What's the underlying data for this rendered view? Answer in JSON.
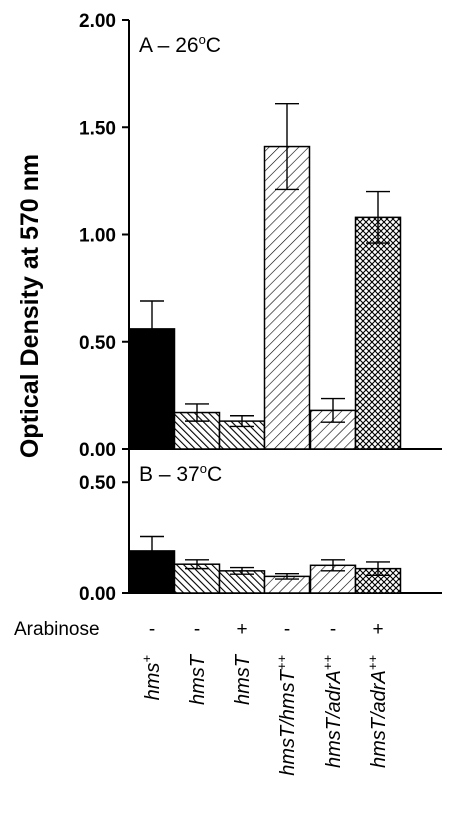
{
  "chart_data": {
    "type": "bar",
    "ylabel": "Optical Density at 570 nm",
    "categories": [
      {
        "base": "hms",
        "sup": "+"
      },
      {
        "base": "hmsT",
        "sup": ""
      },
      {
        "base": "hmsT",
        "sup": ""
      },
      {
        "base": "hmsT/hmsT",
        "sup": "++"
      },
      {
        "base": "hmsT/adrA",
        "sup": "++"
      },
      {
        "base": "hmsT/adrA",
        "sup": "++"
      }
    ],
    "bar_fills": [
      "solid",
      "hatch-dense",
      "hatch-dense",
      "hatch-wide",
      "hatch-wide",
      "crosshatch"
    ],
    "arabinose": {
      "label": "Arabinose",
      "values": [
        "-",
        "-",
        "+",
        "-",
        "-",
        "+"
      ]
    },
    "panels": [
      {
        "title": {
          "prefix": "A – 26",
          "sup": "o",
          "suffix": "C"
        },
        "ylim": [
          0,
          2.0
        ],
        "yticks": [
          "0.00",
          "0.50",
          "1.00",
          "1.50",
          "2.00"
        ],
        "values": [
          0.56,
          0.17,
          0.13,
          1.41,
          0.18,
          1.08
        ],
        "errors": [
          0.13,
          0.04,
          0.025,
          0.2,
          0.055,
          0.12
        ]
      },
      {
        "title": {
          "prefix": "B – 37",
          "sup": "o",
          "suffix": "C"
        },
        "ylim": [
          0,
          0.65
        ],
        "yticks": [
          "0.00",
          "0.50"
        ],
        "values": [
          0.19,
          0.13,
          0.1,
          0.075,
          0.125,
          0.11
        ],
        "errors": [
          0.065,
          0.02,
          0.015,
          0.012,
          0.025,
          0.03
        ]
      }
    ],
    "grid": false,
    "legend": "none"
  },
  "colors": {
    "ink": "#000000",
    "background": "#ffffff"
  }
}
